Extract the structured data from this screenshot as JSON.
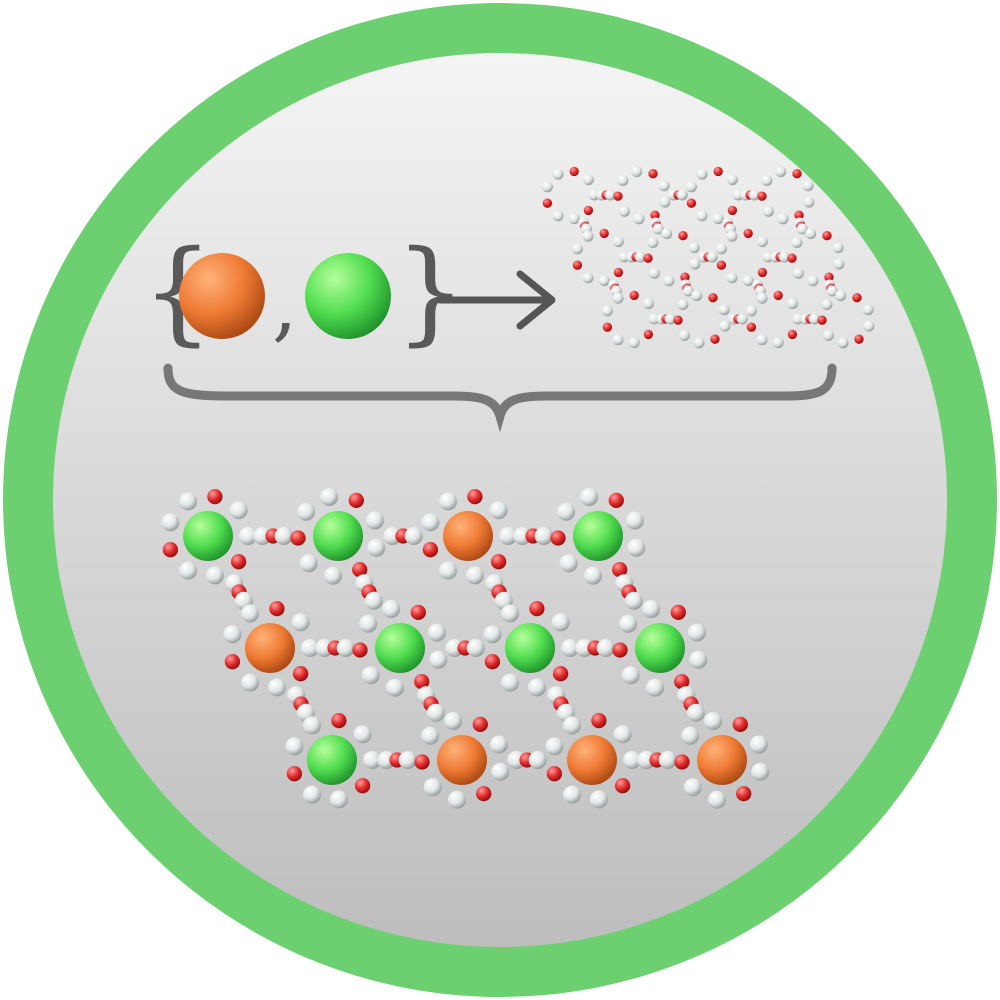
{
  "figure": {
    "colors": {
      "ring": "#6cd070",
      "background_light": "#f4f4f4",
      "background_dark": "#bdbdbd",
      "sphere_orange": "#ee7a33",
      "sphere_green": "#4fdc4f",
      "atom_white": "#e2e6e6",
      "atom_red": "#e02a2a",
      "arrow": "#555555",
      "brace": "#777777"
    },
    "equation": {
      "open_brace": "{",
      "separator": ",",
      "close_brace": "}",
      "operands": [
        "orange-sphere",
        "green-sphere"
      ],
      "arrow_icon": "arrow-right-icon",
      "result": "host-framework"
    },
    "framework": {
      "rows": 3,
      "columns": 4,
      "guest_pattern": [
        [
          "green",
          "green",
          "orange",
          "green"
        ],
        [
          "orange",
          "green",
          "green",
          "green"
        ],
        [
          "green",
          "orange",
          "orange",
          "orange"
        ]
      ]
    },
    "bottom_brace_icon": "curly-brace-icon"
  }
}
